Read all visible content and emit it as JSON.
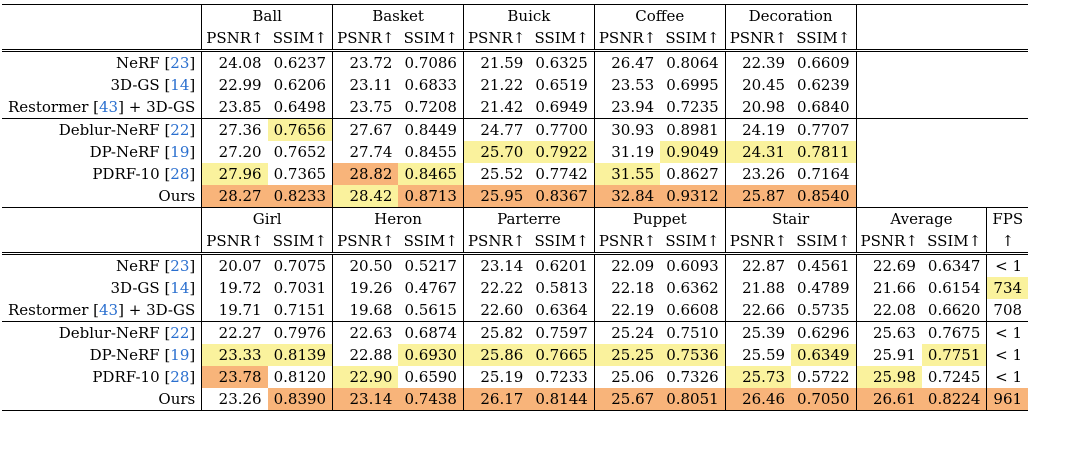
{
  "colors": {
    "best": "#f8b47a",
    "second": "#faf29d",
    "cite": "#2a6fcf"
  },
  "blocks": [
    {
      "scenes": [
        "Ball",
        "Basket",
        "Buick",
        "Coffee",
        "Decoration"
      ],
      "metrics": [
        "PSNR↑",
        "SSIM↑"
      ],
      "has_average": false,
      "rows": [
        {
          "name": "NeRF",
          "cite": "23",
          "suffix": "",
          "vals": [
            "24.08",
            "0.6237",
            "23.72",
            "0.7086",
            "21.59",
            "0.6325",
            "26.47",
            "0.8064",
            "22.39",
            "0.6609"
          ],
          "hl": [
            "",
            "",
            "",
            "",
            "",
            "",
            "",
            "",
            "",
            ""
          ],
          "group_start": false
        },
        {
          "name": "3D-GS",
          "cite": "14",
          "suffix": "",
          "vals": [
            "22.99",
            "0.6206",
            "23.11",
            "0.6833",
            "21.22",
            "0.6519",
            "23.53",
            "0.6995",
            "20.45",
            "0.6239"
          ],
          "hl": [
            "",
            "",
            "",
            "",
            "",
            "",
            "",
            "",
            "",
            ""
          ],
          "group_start": false
        },
        {
          "name": "Restormer",
          "cite": "43",
          "suffix": " + 3D-GS",
          "vals": [
            "23.85",
            "0.6498",
            "23.75",
            "0.7208",
            "21.42",
            "0.6949",
            "23.94",
            "0.7235",
            "20.98",
            "0.6840"
          ],
          "hl": [
            "",
            "",
            "",
            "",
            "",
            "",
            "",
            "",
            "",
            ""
          ],
          "group_start": false
        },
        {
          "name": "Deblur-NeRF",
          "cite": "22",
          "suffix": "",
          "vals": [
            "27.36",
            "0.7656",
            "27.67",
            "0.8449",
            "24.77",
            "0.7700",
            "30.93",
            "0.8981",
            "24.19",
            "0.7707"
          ],
          "hl": [
            "",
            "y",
            "",
            "",
            "",
            "",
            "",
            "",
            "",
            ""
          ],
          "group_start": true
        },
        {
          "name": "DP-NeRF",
          "cite": "19",
          "suffix": "",
          "vals": [
            "27.20",
            "0.7652",
            "27.74",
            "0.8455",
            "25.70",
            "0.7922",
            "31.19",
            "0.9049",
            "24.31",
            "0.7811"
          ],
          "hl": [
            "",
            "",
            "",
            "",
            "y",
            "y",
            "",
            "y",
            "y",
            "y"
          ],
          "group_start": false
        },
        {
          "name": "PDRF-10",
          "cite": "28",
          "suffix": "",
          "vals": [
            "27.96",
            "0.7365",
            "28.82",
            "0.8465",
            "25.52",
            "0.7742",
            "31.55",
            "0.8627",
            "23.26",
            "0.7164"
          ],
          "hl": [
            "y",
            "",
            "o",
            "y",
            "",
            "",
            "y",
            "",
            "",
            ""
          ],
          "group_start": false
        },
        {
          "name": "Ours",
          "cite": "",
          "suffix": "",
          "vals": [
            "28.27",
            "0.8233",
            "28.42",
            "0.8713",
            "25.95",
            "0.8367",
            "32.84",
            "0.9312",
            "25.87",
            "0.8540"
          ],
          "hl": [
            "o",
            "o",
            "y",
            "o",
            "o",
            "o",
            "o",
            "o",
            "o",
            "o"
          ],
          "group_start": false
        }
      ]
    },
    {
      "scenes": [
        "Girl",
        "Heron",
        "Parterre",
        "Puppet",
        "Stair"
      ],
      "metrics": [
        "PSNR↑",
        "SSIM↑"
      ],
      "has_average": true,
      "average_label": "Average",
      "fps_label": "FPS",
      "fps_arrow": "↑",
      "rows": [
        {
          "name": "NeRF",
          "cite": "23",
          "suffix": "",
          "vals": [
            "20.07",
            "0.7075",
            "20.50",
            "0.5217",
            "23.14",
            "0.6201",
            "22.09",
            "0.6093",
            "22.87",
            "0.4561",
            "22.69",
            "0.6347"
          ],
          "fps": "< 1",
          "hl": [
            "",
            "",
            "",
            "",
            "",
            "",
            "",
            "",
            "",
            "",
            "",
            ""
          ],
          "fps_hl": "",
          "group_start": false
        },
        {
          "name": "3D-GS",
          "cite": "14",
          "suffix": "",
          "vals": [
            "19.72",
            "0.7031",
            "19.26",
            "0.4767",
            "22.22",
            "0.5813",
            "22.18",
            "0.6362",
            "21.88",
            "0.4789",
            "21.66",
            "0.6154"
          ],
          "fps": "734",
          "hl": [
            "",
            "",
            "",
            "",
            "",
            "",
            "",
            "",
            "",
            "",
            "",
            ""
          ],
          "fps_hl": "y",
          "group_start": false
        },
        {
          "name": "Restormer",
          "cite": "43",
          "suffix": " + 3D-GS",
          "vals": [
            "19.71",
            "0.7151",
            "19.68",
            "0.5615",
            "22.60",
            "0.6364",
            "22.19",
            "0.6608",
            "22.66",
            "0.5735",
            "22.08",
            "0.6620"
          ],
          "fps": "708",
          "hl": [
            "",
            "",
            "",
            "",
            "",
            "",
            "",
            "",
            "",
            "",
            "",
            ""
          ],
          "fps_hl": "",
          "group_start": false
        },
        {
          "name": "Deblur-NeRF",
          "cite": "22",
          "suffix": "",
          "vals": [
            "22.27",
            "0.7976",
            "22.63",
            "0.6874",
            "25.82",
            "0.7597",
            "25.24",
            "0.7510",
            "25.39",
            "0.6296",
            "25.63",
            "0.7675"
          ],
          "fps": "< 1",
          "hl": [
            "",
            "",
            "",
            "",
            "",
            "",
            "",
            "",
            "",
            "",
            "",
            ""
          ],
          "fps_hl": "",
          "group_start": true
        },
        {
          "name": "DP-NeRF",
          "cite": "19",
          "suffix": "",
          "vals": [
            "23.33",
            "0.8139",
            "22.88",
            "0.6930",
            "25.86",
            "0.7665",
            "25.25",
            "0.7536",
            "25.59",
            "0.6349",
            "25.91",
            "0.7751"
          ],
          "fps": "< 1",
          "hl": [
            "y",
            "y",
            "",
            "y",
            "y",
            "y",
            "y",
            "y",
            "",
            "y",
            "",
            "y"
          ],
          "fps_hl": "",
          "group_start": false
        },
        {
          "name": "PDRF-10",
          "cite": "28",
          "suffix": "",
          "vals": [
            "23.78",
            "0.8120",
            "22.90",
            "0.6590",
            "25.19",
            "0.7233",
            "25.06",
            "0.7326",
            "25.73",
            "0.5722",
            "25.98",
            "0.7245"
          ],
          "fps": "< 1",
          "hl": [
            "o",
            "",
            "y",
            "",
            "",
            "",
            "",
            "",
            "y",
            "",
            "y",
            ""
          ],
          "fps_hl": "",
          "group_start": false
        },
        {
          "name": "Ours",
          "cite": "",
          "suffix": "",
          "vals": [
            "23.26",
            "0.8390",
            "23.14",
            "0.7438",
            "26.17",
            "0.8144",
            "25.67",
            "0.8051",
            "26.46",
            "0.7050",
            "26.61",
            "0.8224"
          ],
          "fps": "961",
          "hl": [
            "",
            "o",
            "o",
            "o",
            "o",
            "o",
            "o",
            "o",
            "o",
            "o",
            "o",
            "o"
          ],
          "fps_hl": "o",
          "group_start": false
        }
      ]
    }
  ]
}
